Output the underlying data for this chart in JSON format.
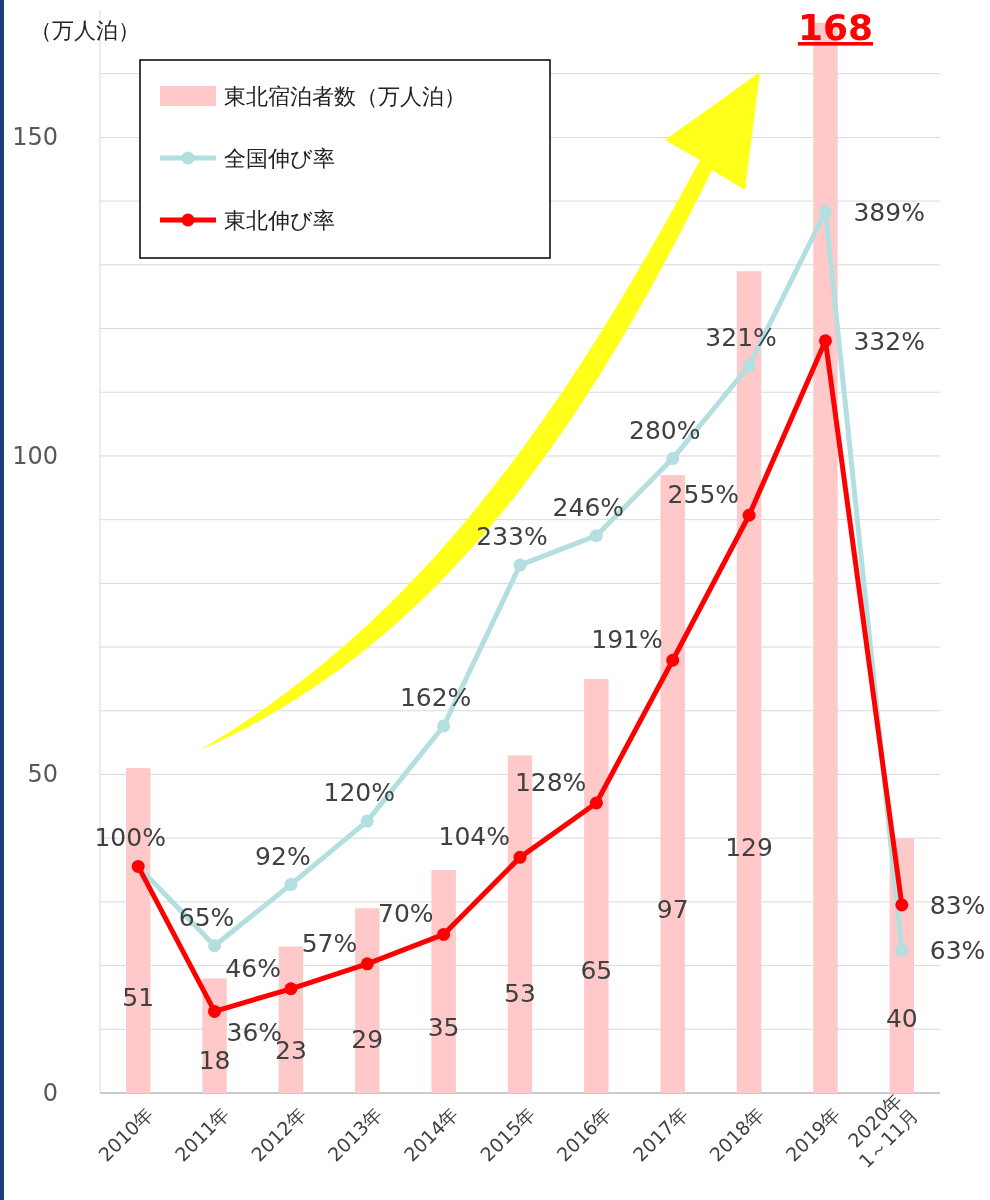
{
  "chart_data": {
    "type": "bar",
    "ylabel": "（万人泊）",
    "categories": [
      "2010年",
      "2011年",
      "2012年",
      "2013年",
      "2014年",
      "2015年",
      "2016年",
      "2017年",
      "2018年",
      "2019年",
      "2020年\n1～11月"
    ],
    "series": [
      {
        "name": "東北宿泊者数（万人泊）",
        "color": "#ffc9c9",
        "values": [
          51,
          18,
          23,
          29,
          35,
          53,
          65,
          97,
          129,
          168,
          40
        ],
        "value_labels": [
          "51",
          "18",
          "23",
          "29",
          "35",
          "53",
          "65",
          "97",
          "129",
          "168",
          "40"
        ]
      },
      {
        "name": "全国伸び率",
        "type": "line",
        "axis": "y2",
        "color": "#b4dfe0",
        "values": [
          100,
          65,
          92,
          120,
          162,
          233,
          246,
          280,
          321,
          389,
          63
        ],
        "value_labels": [
          "100%",
          "65%",
          "92%",
          "120%",
          "162%",
          "233%",
          "246%",
          "280%",
          "321%",
          "389%",
          "63%"
        ]
      },
      {
        "name": "東北伸び率",
        "type": "line",
        "axis": "y2",
        "color": "#ff0000",
        "values": [
          100,
          36,
          46,
          57,
          70,
          104,
          128,
          191,
          255,
          332,
          83
        ],
        "value_labels": [
          null,
          "36%",
          "46%",
          "57%",
          "70%",
          "104%",
          "128%",
          "191%",
          "255%",
          "332%",
          "83%"
        ]
      }
    ],
    "ylim": [
      0,
      170
    ],
    "yticks": [
      0,
      {
        "value": 10,
        "label": null
      },
      {
        "value": 20,
        "label": null
      },
      {
        "value": 30,
        "label": null
      },
      {
        "value": 40,
        "label": null
      },
      50,
      {
        "value": 60,
        "label": null
      },
      {
        "value": 70,
        "label": null
      },
      {
        "value": 80,
        "label": null
      },
      {
        "value": 90,
        "label": null
      },
      100,
      {
        "value": 110,
        "label": null
      },
      {
        "value": 120,
        "label": null
      },
      {
        "value": 130,
        "label": null
      },
      {
        "value": 140,
        "label": null
      },
      150,
      {
        "value": 160,
        "label": null
      }
    ],
    "y2lim": [
      0,
      478
    ],
    "grid": "y",
    "legend": "top left",
    "marker": "circle"
  }
}
